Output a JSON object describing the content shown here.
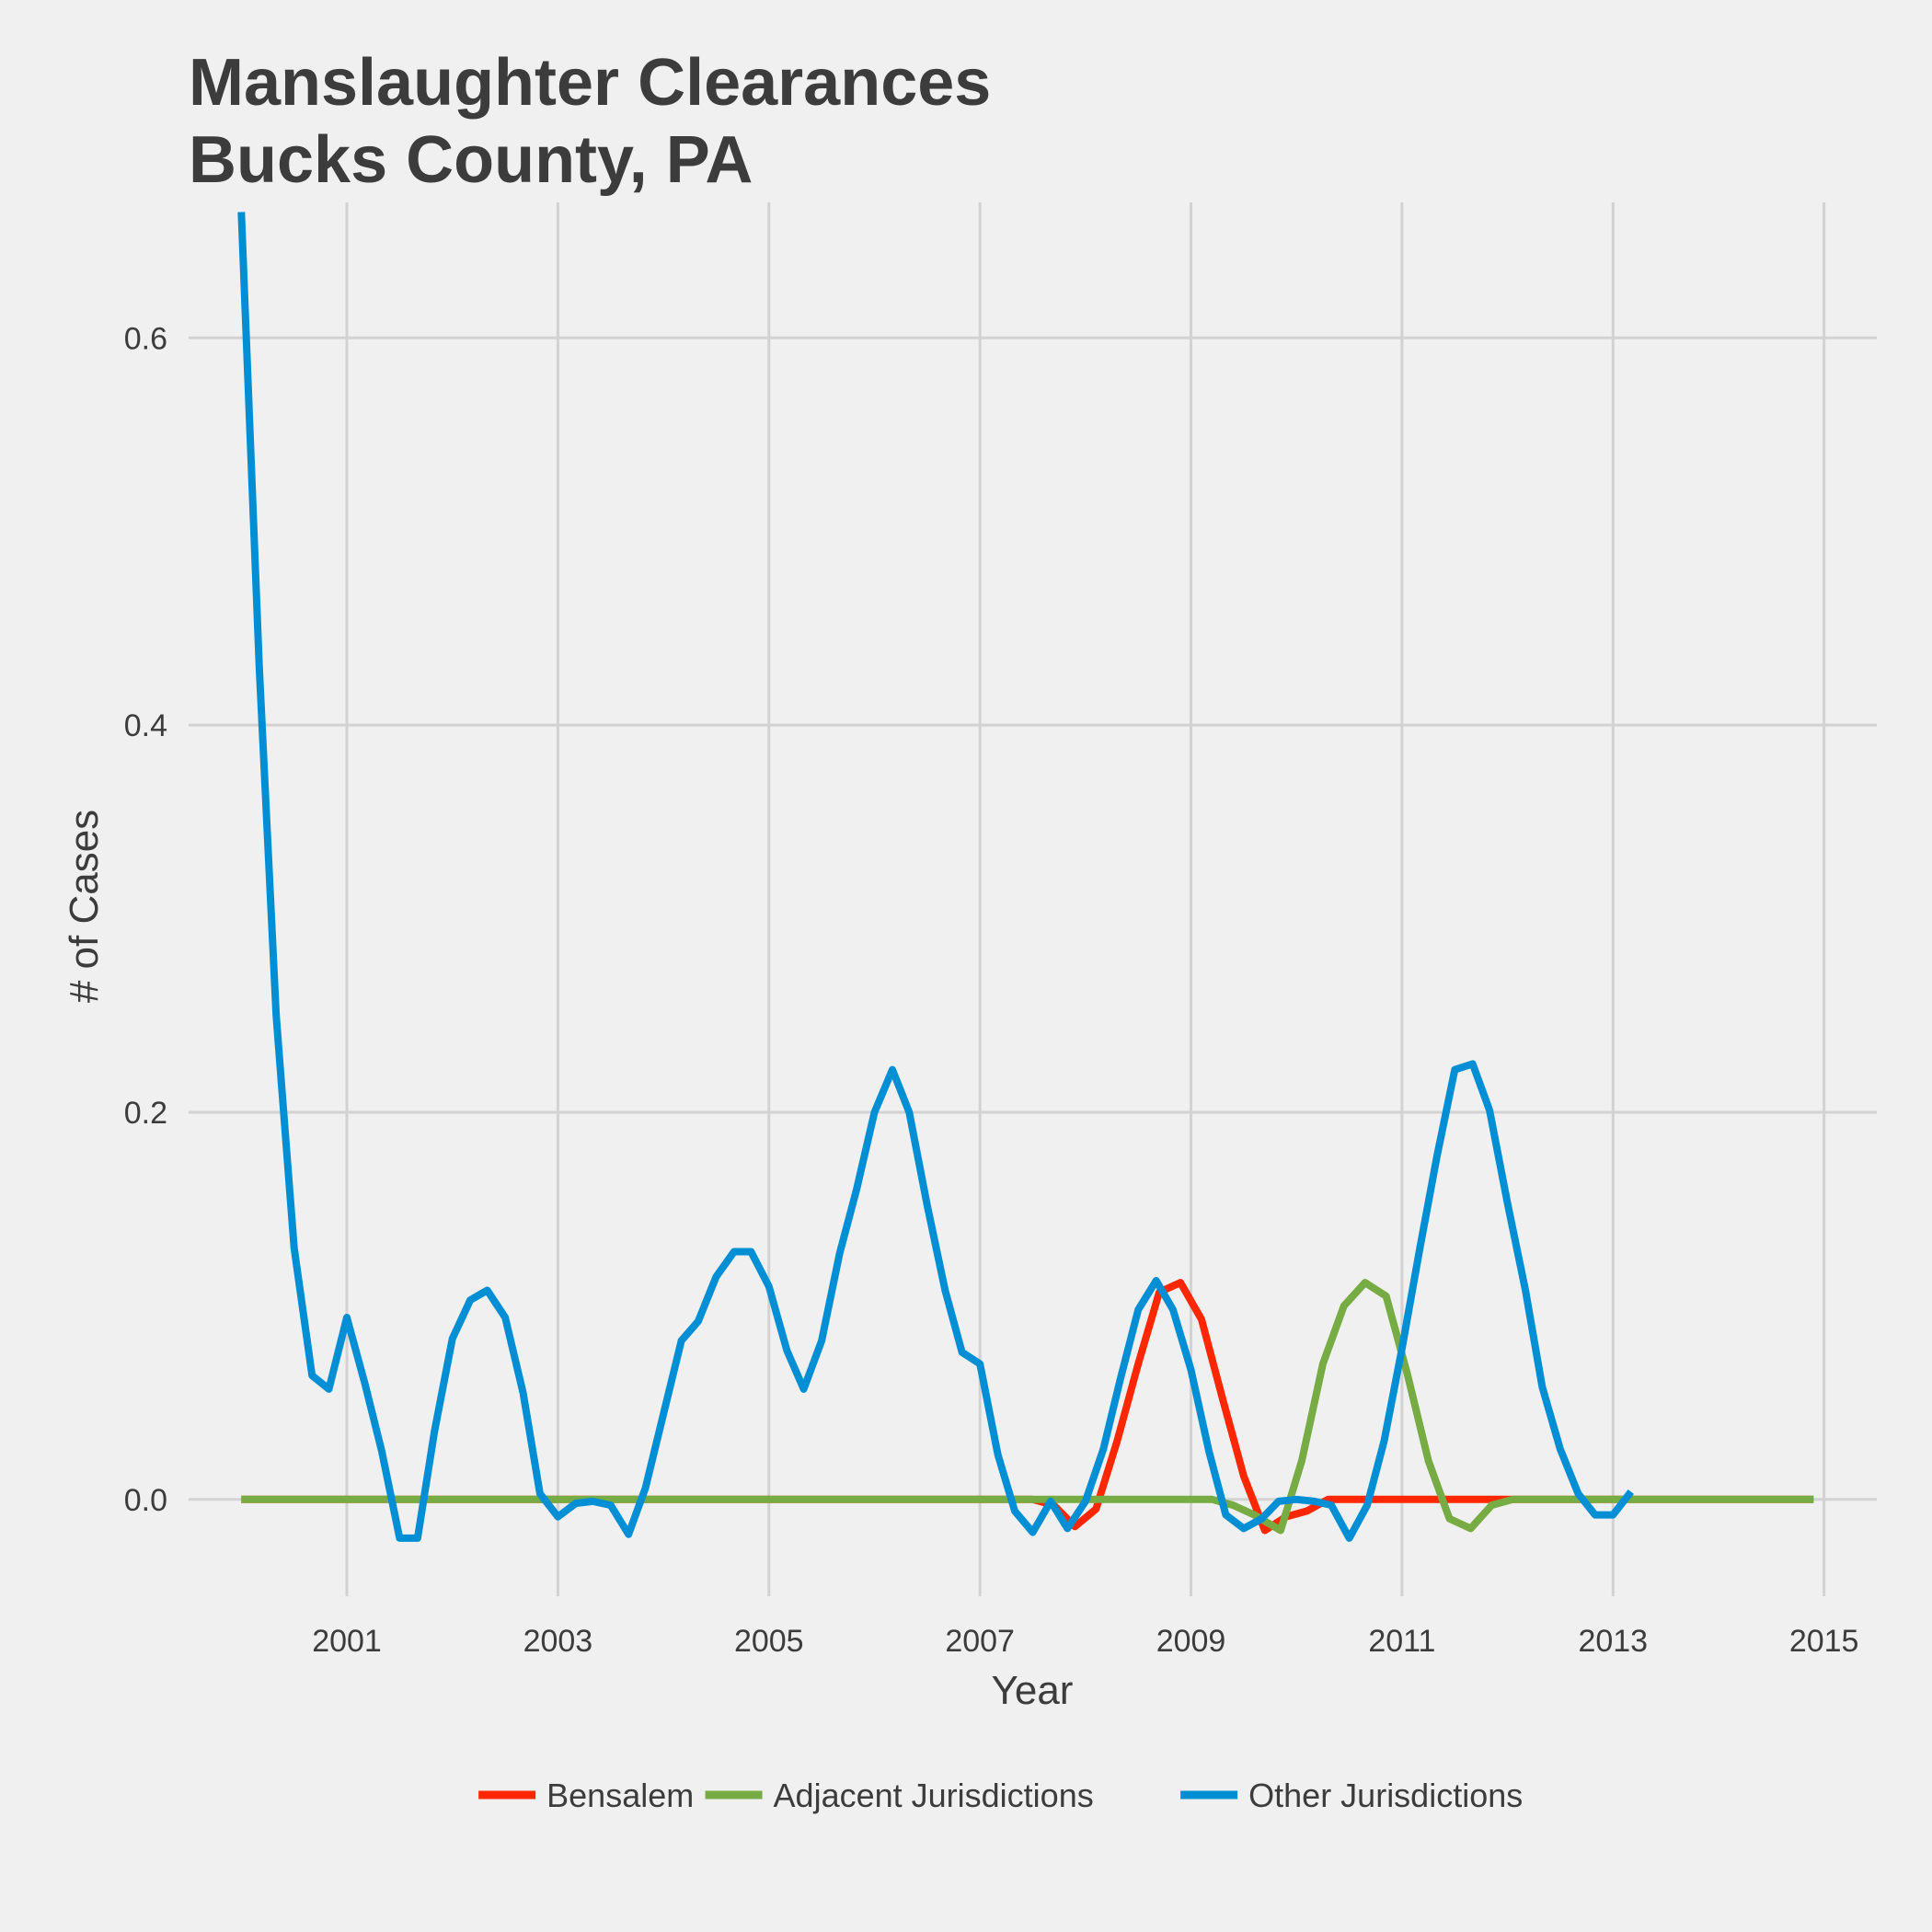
{
  "chart_data": {
    "type": "line",
    "title_line1": "Manslaughter Clearances",
    "title_line2": "Bucks County, PA",
    "xlabel": "Year",
    "ylabel": "# of Cases",
    "xlim": [
      1999.5,
      2015.5
    ],
    "ylim": [
      -0.05,
      0.67
    ],
    "x_ticks": [
      2001,
      2003,
      2005,
      2007,
      2009,
      2011,
      2013,
      2015
    ],
    "y_ticks": [
      0.0,
      0.2,
      0.4,
      0.6
    ],
    "y_tick_labels": [
      "0.0",
      "0.2",
      "0.4",
      "0.6"
    ],
    "legend_position": "bottom",
    "series": [
      {
        "name": "Bensalem",
        "color": "#ff2700",
        "points": [
          [
            2000,
            0
          ],
          [
            2007.5,
            0
          ],
          [
            2007.7,
            -0.003
          ],
          [
            2007.9,
            -0.014
          ],
          [
            2008.1,
            -0.005
          ],
          [
            2008.3,
            0.03
          ],
          [
            2008.5,
            0.07
          ],
          [
            2008.7,
            0.107
          ],
          [
            2008.9,
            0.112
          ],
          [
            2009.1,
            0.093
          ],
          [
            2009.3,
            0.052
          ],
          [
            2009.5,
            0.012
          ],
          [
            2009.7,
            -0.016
          ],
          [
            2009.9,
            -0.009
          ],
          [
            2010.1,
            -0.006
          ],
          [
            2010.3,
            0
          ],
          [
            2012,
            0
          ],
          [
            2014.9,
            0
          ]
        ]
      },
      {
        "name": "Adjacent Jurisdictions",
        "color": "#77ab43",
        "points": [
          [
            2000,
            0
          ],
          [
            2009.2,
            0
          ],
          [
            2009.4,
            -0.003
          ],
          [
            2009.6,
            -0.008
          ],
          [
            2009.85,
            -0.016
          ],
          [
            2010.05,
            0.02
          ],
          [
            2010.25,
            0.07
          ],
          [
            2010.45,
            0.1
          ],
          [
            2010.65,
            0.112
          ],
          [
            2010.85,
            0.105
          ],
          [
            2011.05,
            0.065
          ],
          [
            2011.25,
            0.02
          ],
          [
            2011.45,
            -0.01
          ],
          [
            2011.65,
            -0.015
          ],
          [
            2011.85,
            -0.003
          ],
          [
            2012.05,
            0
          ],
          [
            2014.9,
            0
          ]
        ]
      },
      {
        "name": "Other Jurisdictions",
        "color": "#008fd5",
        "points": [
          [
            2000,
            0.665
          ],
          [
            2000.17,
            0.43
          ],
          [
            2000.33,
            0.25
          ],
          [
            2000.5,
            0.13
          ],
          [
            2000.67,
            0.064
          ],
          [
            2000.83,
            0.057
          ],
          [
            2001.0,
            0.094
          ],
          [
            2001.17,
            0.06
          ],
          [
            2001.33,
            0.025
          ],
          [
            2001.5,
            -0.02
          ],
          [
            2001.67,
            -0.02
          ],
          [
            2001.83,
            0.035
          ],
          [
            2002.0,
            0.083
          ],
          [
            2002.17,
            0.103
          ],
          [
            2002.33,
            0.108
          ],
          [
            2002.5,
            0.094
          ],
          [
            2002.67,
            0.055
          ],
          [
            2002.83,
            0.003
          ],
          [
            2003.0,
            -0.009
          ],
          [
            2003.17,
            -0.002
          ],
          [
            2003.33,
            -0.001
          ],
          [
            2003.5,
            -0.003
          ],
          [
            2003.67,
            -0.018
          ],
          [
            2003.83,
            0.006
          ],
          [
            2004.0,
            0.044
          ],
          [
            2004.17,
            0.082
          ],
          [
            2004.33,
            0.092
          ],
          [
            2004.5,
            0.115
          ],
          [
            2004.67,
            0.128
          ],
          [
            2004.83,
            0.128
          ],
          [
            2005.0,
            0.11
          ],
          [
            2005.17,
            0.077
          ],
          [
            2005.33,
            0.057
          ],
          [
            2005.5,
            0.082
          ],
          [
            2005.67,
            0.127
          ],
          [
            2005.83,
            0.16
          ],
          [
            2006.0,
            0.2
          ],
          [
            2006.17,
            0.222
          ],
          [
            2006.33,
            0.2
          ],
          [
            2006.5,
            0.152
          ],
          [
            2006.67,
            0.108
          ],
          [
            2006.83,
            0.076
          ],
          [
            2007.0,
            0.07
          ],
          [
            2007.17,
            0.023
          ],
          [
            2007.33,
            -0.006
          ],
          [
            2007.5,
            -0.017
          ],
          [
            2007.67,
            -0.001
          ],
          [
            2007.83,
            -0.015
          ],
          [
            2008.0,
            -0.001
          ],
          [
            2008.17,
            0.026
          ],
          [
            2008.33,
            0.062
          ],
          [
            2008.5,
            0.098
          ],
          [
            2008.67,
            0.113
          ],
          [
            2008.83,
            0.098
          ],
          [
            2009.0,
            0.067
          ],
          [
            2009.17,
            0.025
          ],
          [
            2009.33,
            -0.008
          ],
          [
            2009.5,
            -0.015
          ],
          [
            2009.67,
            -0.01
          ],
          [
            2009.83,
            -0.001
          ],
          [
            2010.0,
            0
          ],
          [
            2010.17,
            -0.001
          ],
          [
            2010.33,
            -0.003
          ],
          [
            2010.5,
            -0.02
          ],
          [
            2010.67,
            -0.003
          ],
          [
            2010.83,
            0.03
          ],
          [
            2011.0,
            0.078
          ],
          [
            2011.17,
            0.13
          ],
          [
            2011.33,
            0.177
          ],
          [
            2011.5,
            0.222
          ],
          [
            2011.67,
            0.225
          ],
          [
            2011.83,
            0.201
          ],
          [
            2012.0,
            0.153
          ],
          [
            2012.17,
            0.108
          ],
          [
            2012.33,
            0.058
          ],
          [
            2012.5,
            0.026
          ],
          [
            2012.67,
            0.003
          ],
          [
            2012.83,
            -0.008
          ],
          [
            2013.0,
            -0.008
          ],
          [
            2013.17,
            0.004
          ]
        ]
      }
    ]
  }
}
